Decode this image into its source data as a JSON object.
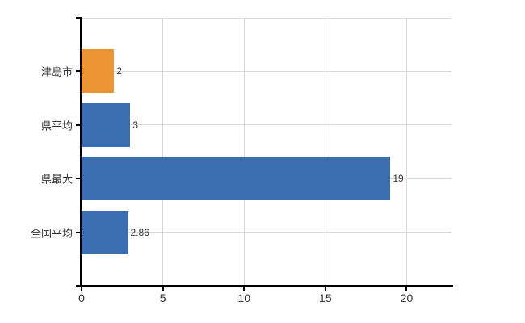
{
  "chart_data": {
    "type": "bar",
    "orientation": "horizontal",
    "title": "",
    "xlabel": "",
    "ylabel": "",
    "categories": [
      "津島市",
      "県平均",
      "県最大",
      "全国平均"
    ],
    "values": [
      2,
      3,
      19,
      2.86
    ],
    "value_labels": [
      "2",
      "3",
      "19",
      "2.86"
    ],
    "bar_colors": [
      "#ED9434",
      "#3B6EB0",
      "#3B6EB0",
      "#3B6EB0"
    ],
    "x_ticks": [
      0,
      5,
      10,
      15,
      20
    ],
    "x_tick_labels": [
      "0",
      "5",
      "10",
      "15",
      "20"
    ],
    "xlim": [
      0,
      22.76
    ],
    "grid": true,
    "legend": "none",
    "colors": {
      "gridline": "#D9D9D9",
      "axis": "#000000",
      "text": "#333333",
      "background": "#FFFFFF"
    }
  }
}
